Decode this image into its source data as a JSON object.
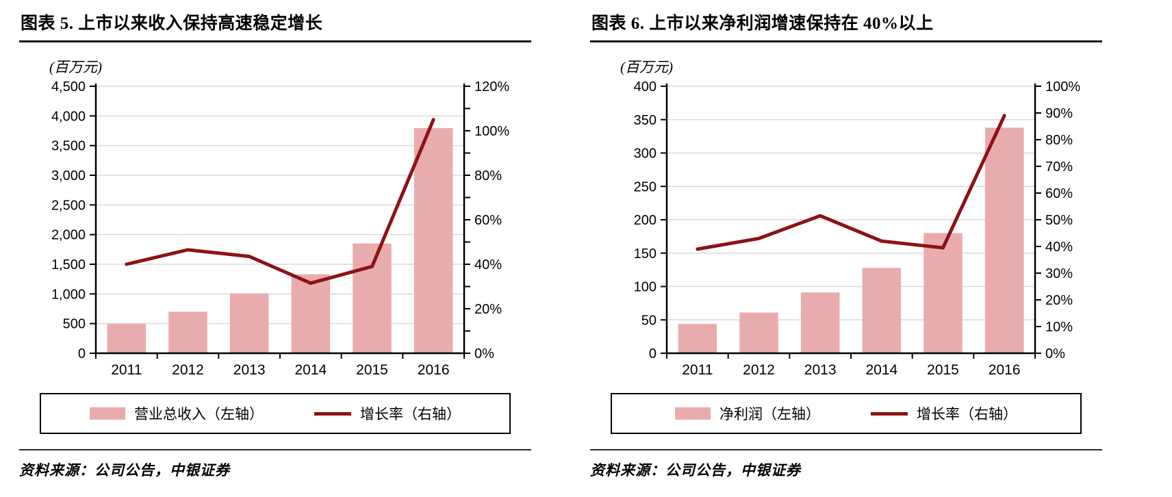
{
  "styles": {
    "bar_color": "#E9ACAC",
    "line_color": "#8C1218",
    "grid_color": "#DADADA",
    "axis_color": "#000000"
  },
  "chart_data": [
    {
      "type": "bar+line",
      "title": "图表 5. 上市以来收入保持高速稳定增长",
      "unit_label": "(百万元)",
      "categories": [
        "2011",
        "2012",
        "2013",
        "2014",
        "2015",
        "2016"
      ],
      "series": [
        {
          "name": "营业总收入（左轴）",
          "type": "bar",
          "axis": "left",
          "color": "#E9ACAC",
          "values": [
            495,
            700,
            1010,
            1330,
            1850,
            3795
          ]
        },
        {
          "name": "增长率（右轴）",
          "type": "line",
          "axis": "right",
          "color": "#8C1218",
          "values": [
            40,
            46.5,
            43.5,
            31.5,
            39,
            105
          ]
        }
      ],
      "left_axis": {
        "min": 0,
        "max": 4500,
        "step": 500,
        "tick_labels": [
          "0",
          "500",
          "1,000",
          "1,500",
          "2,000",
          "2,500",
          "3,000",
          "3,500",
          "4,000",
          "4,500"
        ]
      },
      "right_axis": {
        "min": 0,
        "max": 120,
        "step": 20,
        "minor_per_major": 2,
        "tick_labels": [
          "0%",
          "20%",
          "40%",
          "60%",
          "80%",
          "100%",
          "120%"
        ]
      },
      "grid": true,
      "legend_position": "bottom",
      "source": "资料来源：公司公告，中银证券"
    },
    {
      "type": "bar+line",
      "title": "图表 6. 上市以来净利润增速保持在 40%以上",
      "unit_label": "(百万元)",
      "categories": [
        "2011",
        "2012",
        "2013",
        "2014",
        "2015",
        "2016"
      ],
      "series": [
        {
          "name": "净利润（左轴）",
          "type": "bar",
          "axis": "left",
          "color": "#E9ACAC",
          "values": [
            44,
            61,
            91,
            128,
            180,
            338
          ]
        },
        {
          "name": "增长率（右轴）",
          "type": "line",
          "axis": "right",
          "color": "#8C1218",
          "values": [
            39,
            43,
            51.5,
            42,
            39.5,
            89
          ]
        }
      ],
      "left_axis": {
        "min": 0,
        "max": 400,
        "step": 50,
        "tick_labels": [
          "0",
          "50",
          "100",
          "150",
          "200",
          "250",
          "300",
          "350",
          "400"
        ]
      },
      "right_axis": {
        "min": 0,
        "max": 100,
        "step": 10,
        "minor_per_major": 1,
        "tick_labels": [
          "0%",
          "10%",
          "20%",
          "30%",
          "40%",
          "50%",
          "60%",
          "70%",
          "80%",
          "90%",
          "100%"
        ]
      },
      "grid": true,
      "legend_position": "bottom",
      "source": "资料来源：公司公告，中银证券"
    }
  ]
}
